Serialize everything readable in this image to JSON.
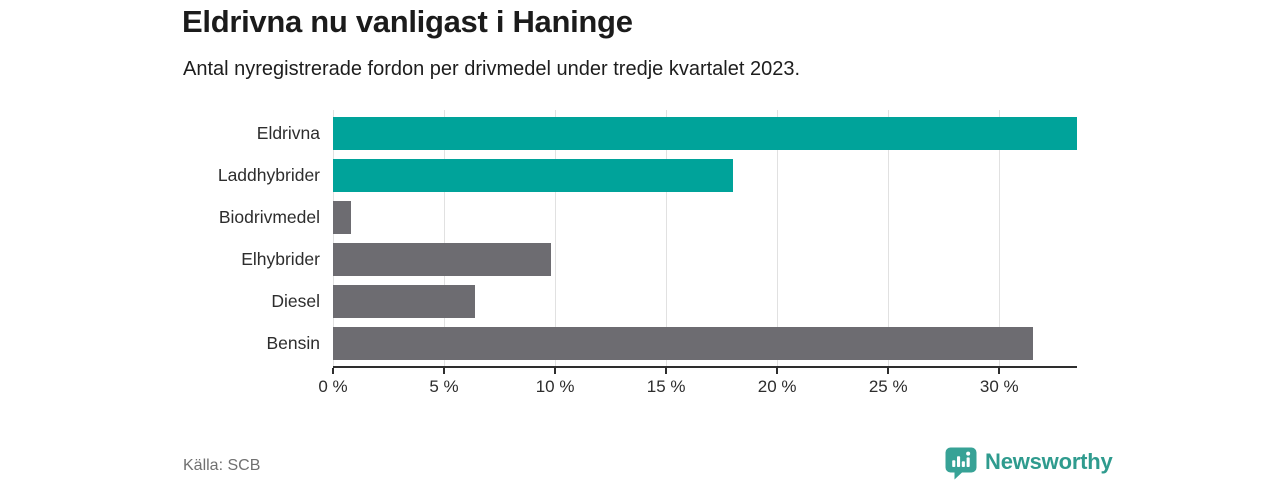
{
  "title": "Eldrivna nu vanligast i Haninge",
  "subtitle": "Antal nyregistrerade fordon per drivmedel under tredje kvartalet 2023.",
  "source": "Källa: SCB",
  "brand": {
    "name": "Newsworthy",
    "color": "#2f9b8e",
    "icon": "newsworthy-bubble-barchart-icon"
  },
  "colors": {
    "highlight_teal": "#00a39a",
    "default_gray": "#6d6c71",
    "gridline": "#e1e1e1",
    "axis": "#2e2e2e"
  },
  "chart_data": {
    "type": "bar",
    "orientation": "horizontal",
    "title": "Eldrivna nu vanligast i Haninge",
    "subtitle": "Antal nyregistrerade fordon per drivmedel under tredje kvartalet 2023.",
    "categories": [
      "Eldrivna",
      "Laddhybrider",
      "Biodrivmedel",
      "Elhybrider",
      "Diesel",
      "Bensin"
    ],
    "values": [
      33.5,
      18.0,
      0.8,
      9.8,
      6.4,
      31.5
    ],
    "unit": "%",
    "bar_colors": [
      "#00a39a",
      "#00a39a",
      "#6d6c71",
      "#6d6c71",
      "#6d6c71",
      "#6d6c71"
    ],
    "xlim": [
      0,
      33.5
    ],
    "xticks": [
      0,
      5,
      10,
      15,
      20,
      25,
      30
    ],
    "xtick_labels": [
      "0 %",
      "5 %",
      "10 %",
      "15 %",
      "20 %",
      "25 %",
      "30 %"
    ],
    "grid": true,
    "legend": false
  }
}
